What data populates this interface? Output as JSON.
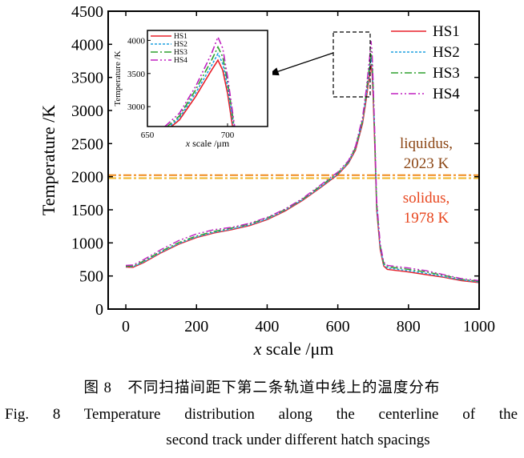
{
  "chart_data": {
    "type": "line",
    "xlabel_var": "x",
    "xlabel_rest": " scale /μm",
    "ylabel": "Temperature /K",
    "xlim": [
      -50,
      1000
    ],
    "ylim": [
      0,
      4500
    ],
    "xticks": [
      0,
      200,
      400,
      600,
      800,
      1000
    ],
    "yticks": [
      0,
      500,
      1000,
      1500,
      2000,
      2500,
      3000,
      3500,
      4000,
      4500
    ],
    "grid": false,
    "legend_position": "top-right",
    "series": [
      {
        "name": "HS1",
        "color": "#e8202a",
        "dash": "",
        "x": [
          0,
          20,
          50,
          100,
          150,
          200,
          250,
          300,
          350,
          400,
          450,
          500,
          550,
          600,
          630,
          650,
          670,
          680,
          690,
          694,
          697,
          700,
          705,
          710,
          720,
          730,
          740,
          800,
          850,
          900,
          950,
          1000
        ],
        "y": [
          635,
          630,
          700,
          850,
          980,
          1080,
          1150,
          1200,
          1260,
          1350,
          1480,
          1640,
          1830,
          2030,
          2200,
          2400,
          2800,
          3150,
          3550,
          3700,
          3550,
          3200,
          2400,
          1500,
          900,
          650,
          600,
          560,
          520,
          480,
          430,
          400
        ]
      },
      {
        "name": "HS2",
        "color": "#1ea0e0",
        "dash": "3,2",
        "x": [
          0,
          20,
          50,
          100,
          150,
          200,
          250,
          300,
          350,
          400,
          450,
          500,
          550,
          600,
          630,
          650,
          670,
          680,
          690,
          694,
          697,
          700,
          705,
          710,
          720,
          730,
          740,
          800,
          850,
          900,
          950,
          1000
        ],
        "y": [
          645,
          640,
          710,
          860,
          990,
          1090,
          1160,
          1210,
          1270,
          1360,
          1490,
          1650,
          1840,
          2040,
          2210,
          2420,
          2830,
          3200,
          3620,
          3800,
          3650,
          3300,
          2500,
          1550,
          930,
          670,
          620,
          580,
          540,
          490,
          440,
          410
        ]
      },
      {
        "name": "HS3",
        "color": "#2ea02e",
        "dash": "9,3,2,3",
        "x": [
          0,
          20,
          50,
          100,
          150,
          200,
          250,
          300,
          350,
          400,
          450,
          500,
          550,
          600,
          630,
          650,
          670,
          680,
          690,
          694,
          697,
          700,
          705,
          710,
          720,
          730,
          740,
          800,
          850,
          900,
          950,
          1000
        ],
        "y": [
          650,
          650,
          725,
          875,
          1005,
          1105,
          1175,
          1225,
          1285,
          1375,
          1500,
          1660,
          1855,
          2055,
          2225,
          2440,
          2860,
          3250,
          3700,
          3900,
          3750,
          3380,
          2550,
          1600,
          960,
          690,
          640,
          600,
          560,
          510,
          450,
          420
        ]
      },
      {
        "name": "HS4",
        "color": "#c020c0",
        "dash": "9,3,2,3,2,3",
        "x": [
          0,
          20,
          50,
          100,
          150,
          200,
          250,
          300,
          350,
          400,
          450,
          500,
          550,
          600,
          630,
          650,
          670,
          680,
          690,
          694,
          697,
          700,
          705,
          710,
          720,
          730,
          740,
          800,
          850,
          900,
          950,
          1000
        ],
        "y": [
          660,
          665,
          745,
          900,
          1035,
          1135,
          1200,
          1235,
          1295,
          1385,
          1510,
          1670,
          1870,
          2070,
          2240,
          2460,
          2900,
          3300,
          3800,
          4050,
          3880,
          3450,
          2600,
          1650,
          990,
          710,
          660,
          620,
          580,
          520,
          460,
          430
        ]
      }
    ],
    "reference_lines": [
      {
        "y": 2023,
        "color": "#f08c1e"
      },
      {
        "y": 1978,
        "color": "#f0b428"
      }
    ],
    "annotations": [
      {
        "lines": [
          "liquidus,",
          "2023 K"
        ],
        "color": "#8b4513"
      },
      {
        "lines": [
          "solidus,",
          "1978 K"
        ],
        "color": "#e8461e"
      }
    ],
    "inset": {
      "xlim": [
        650,
        725
      ],
      "ylim": [
        2700,
        4150
      ],
      "xticks": [
        650,
        700
      ],
      "yticks": [
        3000,
        3500,
        4000
      ],
      "xlabel_var": "x",
      "xlabel_rest": " scale /μm",
      "ylabel": "Temperature /K",
      "legend_position": "top-left",
      "zoom_box_x": [
        635,
        725
      ],
      "zoom_box_y": [
        3200,
        4150
      ]
    }
  },
  "caption": {
    "zh": "图 8　不同扫描间距下第二条轨道中线上的温度分布",
    "en_line1": "Fig. 8   Temperature distribution along the centerline of the",
    "en_line2": "second track under different hatch spacings"
  }
}
